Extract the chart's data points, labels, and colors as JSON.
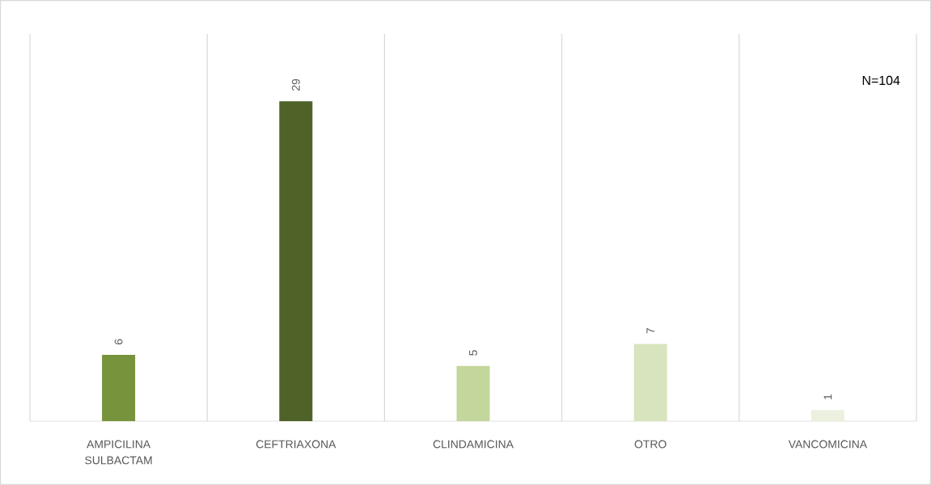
{
  "chart_data": {
    "type": "bar",
    "categories": [
      "AMPICILINA SULBACTAM",
      "CEFTRIAXONA",
      "CLINDAMICINA",
      "OTRO",
      "VANCOMICINA"
    ],
    "values": [
      6,
      29,
      5,
      7,
      1
    ],
    "colors": [
      "#77933c",
      "#4f6228",
      "#c3d69b",
      "#d7e4bd",
      "#ebf1de"
    ],
    "data_labels": true,
    "grid": "x",
    "annotations": [
      "N=104"
    ]
  }
}
